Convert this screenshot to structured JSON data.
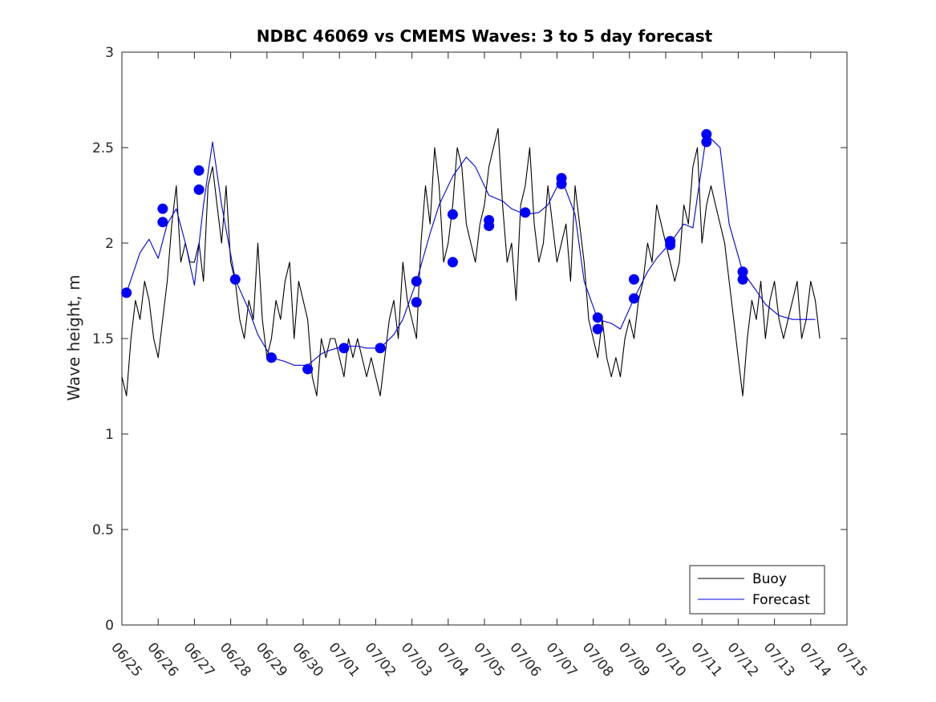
{
  "chart_data": {
    "type": "line",
    "title": "NDBC 46069 vs CMEMS Waves: 3 to 5 day forecast",
    "xlabel": "",
    "ylabel": "Wave height, m",
    "xlim": [
      "06/25",
      "07/15"
    ],
    "ylim": [
      0,
      3
    ],
    "yticks": [
      0,
      0.5,
      1,
      1.5,
      2,
      2.5,
      3
    ],
    "xticks": [
      "06/25",
      "06/26",
      "06/27",
      "06/28",
      "06/29",
      "06/30",
      "07/01",
      "07/02",
      "07/03",
      "07/04",
      "07/05",
      "07/06",
      "07/07",
      "07/08",
      "07/09",
      "07/10",
      "07/11",
      "07/12",
      "07/13",
      "07/14",
      "07/15"
    ],
    "grid": false,
    "legend": {
      "position": "bottom-right",
      "entries": [
        "Buoy",
        "Forecast"
      ]
    },
    "colors": {
      "buoy": "#000000",
      "forecast": "#0000dd",
      "marker": "#0000ff"
    },
    "series": [
      {
        "name": "Buoy",
        "x": [
          "06/25 00:00",
          "06/25 03:00",
          "06/25 06:00",
          "06/25 09:00",
          "06/25 12:00",
          "06/25 15:00",
          "06/25 18:00",
          "06/25 21:00",
          "06/26 00:00",
          "06/26 03:00",
          "06/26 06:00",
          "06/26 09:00",
          "06/26 12:00",
          "06/26 15:00",
          "06/26 18:00",
          "06/26 21:00",
          "06/27 00:00",
          "06/27 03:00",
          "06/27 06:00",
          "06/27 09:00",
          "06/27 12:00",
          "06/27 15:00",
          "06/27 18:00",
          "06/27 21:00",
          "06/28 00:00",
          "06/28 03:00",
          "06/28 06:00",
          "06/28 09:00",
          "06/28 12:00",
          "06/28 15:00",
          "06/28 18:00",
          "06/28 21:00",
          "06/29 00:00",
          "06/29 03:00",
          "06/29 06:00",
          "06/29 09:00",
          "06/29 12:00",
          "06/29 15:00",
          "06/29 18:00",
          "06/29 21:00",
          "06/30 00:00",
          "06/30 03:00",
          "06/30 06:00",
          "06/30 09:00",
          "06/30 12:00",
          "06/30 15:00",
          "06/30 18:00",
          "06/30 21:00",
          "07/01 00:00",
          "07/01 03:00",
          "07/01 06:00",
          "07/01 09:00",
          "07/01 12:00",
          "07/01 15:00",
          "07/01 18:00",
          "07/01 21:00",
          "07/02 00:00",
          "07/02 03:00",
          "07/02 06:00",
          "07/02 09:00",
          "07/02 12:00",
          "07/02 15:00",
          "07/02 18:00",
          "07/02 21:00",
          "07/03 00:00",
          "07/03 03:00",
          "07/03 06:00",
          "07/03 09:00",
          "07/03 12:00",
          "07/03 15:00",
          "07/03 18:00",
          "07/03 21:00",
          "07/04 00:00",
          "07/04 03:00",
          "07/04 06:00",
          "07/04 09:00",
          "07/04 12:00",
          "07/04 15:00",
          "07/04 18:00",
          "07/04 21:00",
          "07/05 00:00",
          "07/05 03:00",
          "07/05 06:00",
          "07/05 09:00",
          "07/05 12:00",
          "07/05 15:00",
          "07/05 18:00",
          "07/05 21:00",
          "07/06 00:00",
          "07/06 03:00",
          "07/06 06:00",
          "07/06 09:00",
          "07/06 12:00",
          "07/06 15:00",
          "07/06 18:00",
          "07/06 21:00",
          "07/07 00:00",
          "07/07 03:00",
          "07/07 06:00",
          "07/07 09:00",
          "07/07 12:00",
          "07/07 15:00",
          "07/07 18:00",
          "07/07 21:00",
          "07/08 00:00",
          "07/08 03:00",
          "07/08 06:00",
          "07/08 09:00",
          "07/08 12:00",
          "07/08 15:00",
          "07/08 18:00",
          "07/08 21:00",
          "07/09 00:00",
          "07/09 03:00",
          "07/09 06:00",
          "07/09 09:00",
          "07/09 12:00",
          "07/09 15:00",
          "07/09 18:00",
          "07/09 21:00",
          "07/10 00:00",
          "07/10 03:00",
          "07/10 06:00",
          "07/10 09:00",
          "07/10 12:00",
          "07/10 15:00",
          "07/10 18:00",
          "07/10 21:00",
          "07/11 00:00",
          "07/11 03:00",
          "07/11 06:00",
          "07/11 09:00",
          "07/11 12:00",
          "07/11 15:00",
          "07/11 18:00",
          "07/11 21:00",
          "07/12 00:00",
          "07/12 03:00",
          "07/12 06:00",
          "07/12 09:00",
          "07/12 12:00",
          "07/12 15:00",
          "07/12 18:00",
          "07/12 21:00",
          "07/13 00:00",
          "07/13 03:00",
          "07/13 06:00",
          "07/13 09:00",
          "07/13 12:00",
          "07/13 15:00",
          "07/13 18:00",
          "07/13 21:00",
          "07/14 00:00",
          "07/14 03:00",
          "07/14 06:00"
        ],
        "y": [
          1.3,
          1.2,
          1.5,
          1.7,
          1.6,
          1.8,
          1.7,
          1.5,
          1.4,
          1.6,
          1.8,
          2.1,
          2.3,
          1.9,
          2.0,
          1.9,
          1.9,
          2.0,
          1.8,
          2.3,
          2.4,
          2.2,
          2.0,
          2.3,
          1.9,
          1.8,
          1.6,
          1.5,
          1.7,
          1.6,
          2.0,
          1.6,
          1.4,
          1.5,
          1.7,
          1.6,
          1.8,
          1.9,
          1.5,
          1.8,
          1.7,
          1.6,
          1.3,
          1.2,
          1.5,
          1.4,
          1.5,
          1.5,
          1.4,
          1.3,
          1.5,
          1.4,
          1.5,
          1.4,
          1.3,
          1.4,
          1.3,
          1.2,
          1.4,
          1.6,
          1.7,
          1.5,
          1.9,
          1.7,
          1.6,
          1.5,
          2.0,
          2.3,
          2.1,
          2.5,
          2.3,
          1.9,
          2.0,
          2.2,
          2.5,
          2.4,
          2.1,
          2.0,
          1.9,
          2.1,
          2.2,
          2.4,
          2.5,
          2.6,
          2.2,
          1.9,
          2.0,
          1.7,
          2.2,
          2.3,
          2.5,
          2.1,
          1.9,
          2.0,
          2.3,
          2.1,
          1.9,
          2.0,
          2.1,
          1.8,
          2.3,
          2.1,
          1.9,
          1.6,
          1.5,
          1.4,
          1.6,
          1.4,
          1.3,
          1.4,
          1.3,
          1.5,
          1.6,
          1.5,
          1.7,
          1.8,
          2.0,
          1.9,
          2.2,
          2.1,
          2.0,
          1.9,
          1.8,
          1.9,
          2.2,
          2.1,
          2.4,
          2.5,
          2.0,
          2.2,
          2.3,
          2.2,
          2.1,
          2.0,
          1.8,
          1.6,
          1.4,
          1.2,
          1.5,
          1.7,
          1.6,
          1.8,
          1.5,
          1.7,
          1.8,
          1.6,
          1.5,
          1.6,
          1.7,
          1.8,
          1.5,
          1.6,
          1.8,
          1.7,
          1.5
        ]
      },
      {
        "name": "Forecast",
        "x": [
          "06/25 03:00",
          "06/25 12:00",
          "06/25 18:00",
          "06/26 00:00",
          "06/26 06:00",
          "06/26 12:00",
          "06/26 18:00",
          "06/27 00:00",
          "06/27 06:00",
          "06/27 12:00",
          "06/27 18:00",
          "06/28 03:00",
          "06/28 12:00",
          "06/28 18:00",
          "06/29 03:00",
          "06/29 12:00",
          "06/29 18:00",
          "06/30 03:00",
          "06/30 12:00",
          "06/30 18:00",
          "07/01 03:00",
          "07/01 12:00",
          "07/01 18:00",
          "07/02 03:00",
          "07/02 12:00",
          "07/02 18:00",
          "07/03 03:00",
          "07/03 12:00",
          "07/03 18:00",
          "07/04 03:00",
          "07/04 12:00",
          "07/04 18:00",
          "07/05 03:00",
          "07/05 12:00",
          "07/05 18:00",
          "07/06 03:00",
          "07/06 12:00",
          "07/06 18:00",
          "07/07 03:00",
          "07/07 12:00",
          "07/07 18:00",
          "07/08 03:00",
          "07/08 12:00",
          "07/08 18:00",
          "07/09 03:00",
          "07/09 12:00",
          "07/09 18:00",
          "07/10 03:00",
          "07/10 12:00",
          "07/10 18:00",
          "07/11 03:00",
          "07/11 12:00",
          "07/11 18:00",
          "07/12 03:00",
          "07/12 12:00",
          "07/12 18:00",
          "07/13 03:00",
          "07/13 12:00",
          "07/13 18:00",
          "07/14 03:00"
        ],
        "y": [
          1.74,
          1.95,
          2.02,
          1.92,
          2.1,
          2.18,
          2.0,
          1.78,
          2.2,
          2.53,
          2.2,
          1.81,
          1.65,
          1.52,
          1.4,
          1.38,
          1.36,
          1.36,
          1.42,
          1.44,
          1.46,
          1.46,
          1.45,
          1.45,
          1.52,
          1.6,
          1.8,
          2.05,
          2.2,
          2.35,
          2.45,
          2.4,
          2.25,
          2.22,
          2.18,
          2.15,
          2.16,
          2.2,
          2.34,
          2.15,
          1.8,
          1.6,
          1.58,
          1.55,
          1.71,
          1.85,
          1.92,
          2.0,
          2.1,
          2.08,
          2.57,
          2.5,
          2.1,
          1.85,
          1.75,
          1.68,
          1.62,
          1.6,
          1.6,
          1.6
        ]
      }
    ],
    "markers": {
      "x": [
        "06/25 03:00",
        "06/26 03:00",
        "06/26 03:00",
        "06/27 03:00",
        "06/27 03:00",
        "06/28 03:00",
        "06/29 03:00",
        "06/30 03:00",
        "07/01 03:00",
        "07/02 03:00",
        "07/03 03:00",
        "07/03 03:00",
        "07/04 03:00",
        "07/04 03:00",
        "07/05 03:00",
        "07/05 03:00",
        "07/06 03:00",
        "07/07 03:00",
        "07/07 03:00",
        "07/08 03:00",
        "07/08 03:00",
        "07/09 03:00",
        "07/09 03:00",
        "07/10 03:00",
        "07/10 03:00",
        "07/11 03:00",
        "07/11 03:00",
        "07/12 03:00",
        "07/12 03:00"
      ],
      "y": [
        1.74,
        2.18,
        2.11,
        2.38,
        2.28,
        1.81,
        1.4,
        1.34,
        1.45,
        1.45,
        1.8,
        1.69,
        2.15,
        1.9,
        2.12,
        2.09,
        2.16,
        2.34,
        2.31,
        1.61,
        1.55,
        1.81,
        1.71,
        2.01,
        1.99,
        2.57,
        2.53,
        1.85,
        1.81
      ]
    }
  }
}
